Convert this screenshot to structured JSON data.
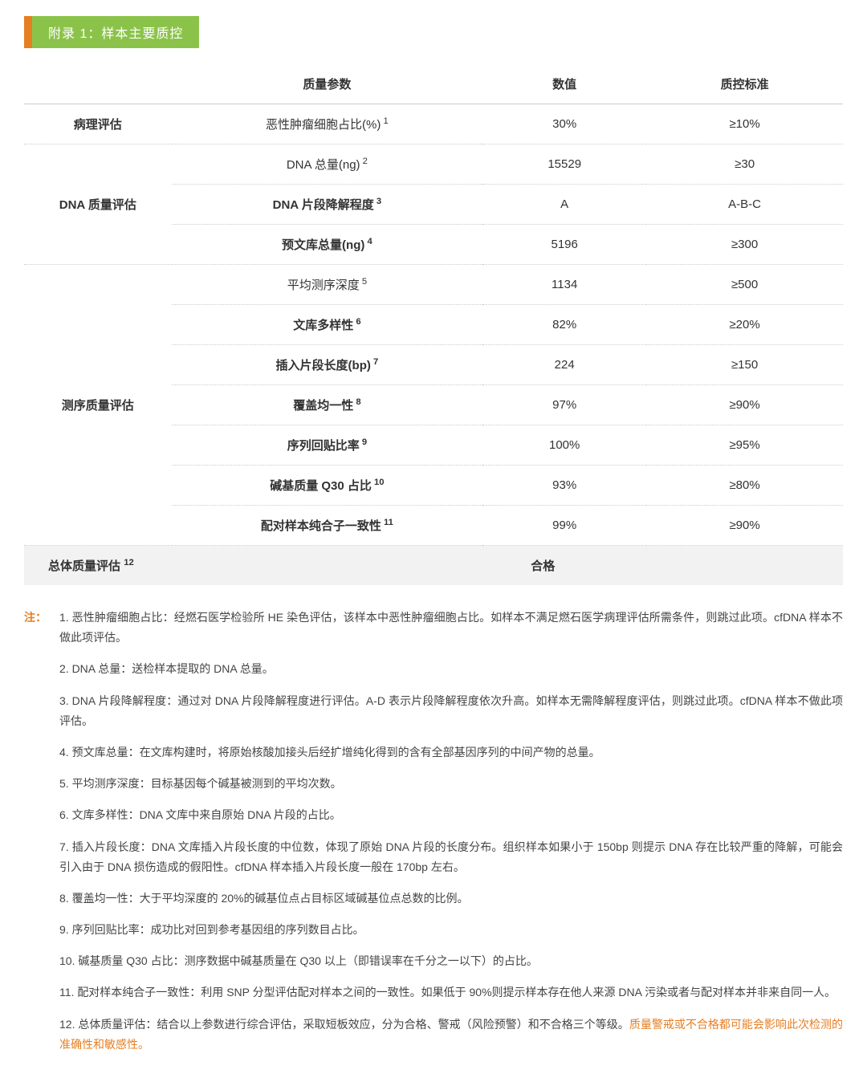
{
  "header": {
    "title": "附录 1：样本主要质控"
  },
  "table": {
    "columns": {
      "c1": "",
      "c2": "质量参数",
      "c3": "数值",
      "c4": "质控标准"
    },
    "col_widths": [
      "18%",
      "38%",
      "20%",
      "24%"
    ],
    "groups": [
      {
        "label": "病理评估",
        "rows": [
          {
            "param": "恶性肿瘤细胞占比(%)",
            "sup": "1",
            "value": "30%",
            "std": "≥10%"
          }
        ]
      },
      {
        "label": "DNA 质量评估",
        "rows": [
          {
            "param": "DNA 总量(ng)",
            "sup": "2",
            "value": "15529",
            "std": "≥30"
          },
          {
            "param": "DNA 片段降解程度",
            "sup": "3",
            "value": "A",
            "std": "A-B-C"
          },
          {
            "param": "预文库总量(ng)",
            "sup": "4",
            "value": "5196",
            "std": "≥300"
          }
        ]
      },
      {
        "label": "测序质量评估",
        "rows": [
          {
            "param": "平均测序深度",
            "sup": "5",
            "value": "1134",
            "std": "≥500"
          },
          {
            "param": "文库多样性",
            "sup": "6",
            "value": "82%",
            "std": "≥20%"
          },
          {
            "param": "插入片段长度(bp)",
            "sup": "7",
            "value": "224",
            "std": "≥150"
          },
          {
            "param": "覆盖均一性",
            "sup": "8",
            "value": "97%",
            "std": "≥90%"
          },
          {
            "param": "序列回贴比率",
            "sup": "9",
            "value": "100%",
            "std": "≥95%"
          },
          {
            "param": "碱基质量 Q30 占比",
            "sup": "10",
            "value": "93%",
            "std": "≥80%"
          },
          {
            "param": "配对样本纯合子一致性",
            "sup": "11",
            "value": "99%",
            "std": "≥90%"
          }
        ]
      }
    ],
    "summary": {
      "label": "总体质量评估",
      "sup": "12",
      "result": "合格"
    }
  },
  "notes": {
    "label": "注：",
    "items": [
      "1. 恶性肿瘤细胞占比：经燃石医学检验所 HE 染色评估，该样本中恶性肿瘤细胞占比。如样本不满足燃石医学病理评估所需条件，则跳过此项。cfDNA 样本不做此项评估。",
      "2. DNA 总量：送检样本提取的 DNA 总量。",
      "3. DNA 片段降解程度：通过对 DNA 片段降解程度进行评估。A-D 表示片段降解程度依次升高。如样本无需降解程度评估，则跳过此项。cfDNA 样本不做此项评估。",
      "4. 预文库总量：在文库构建时，将原始核酸加接头后经扩增纯化得到的含有全部基因序列的中间产物的总量。",
      "5. 平均测序深度：目标基因每个碱基被测到的平均次数。",
      "6. 文库多样性：DNA 文库中来自原始 DNA 片段的占比。",
      "7. 插入片段长度：DNA 文库插入片段长度的中位数，体现了原始 DNA 片段的长度分布。组织样本如果小于 150bp 则提示 DNA 存在比较严重的降解，可能会引入由于 DNA 损伤造成的假阳性。cfDNA 样本插入片段长度一般在 170bp 左右。",
      "8. 覆盖均一性：大于平均深度的 20%的碱基位点占目标区域碱基位点总数的比例。",
      "9. 序列回贴比率：成功比对回到参考基因组的序列数目占比。",
      "10. 碱基质量 Q30 占比：测序数据中碱基质量在 Q30 以上（即错误率在千分之一以下）的占比。",
      "11. 配对样本纯合子一致性：利用 SNP 分型评估配对样本之间的一致性。如果低于 90%则提示样本存在他人来源 DNA 污染或者与配对样本并非来自同一人。"
    ],
    "last_item_prefix": "12. 总体质量评估：结合以上参数进行综合评估，采取短板效应，分为合格、警戒（风险预警）和不合格三个等级。",
    "last_item_warn": "质量警戒或不合格都可能会影响此次检测的准确性和敏感性。"
  },
  "colors": {
    "accent_orange": "#e67e22",
    "header_green": "#8bc34a",
    "summary_bg": "#f2f2f2",
    "border": "#cccccc"
  }
}
